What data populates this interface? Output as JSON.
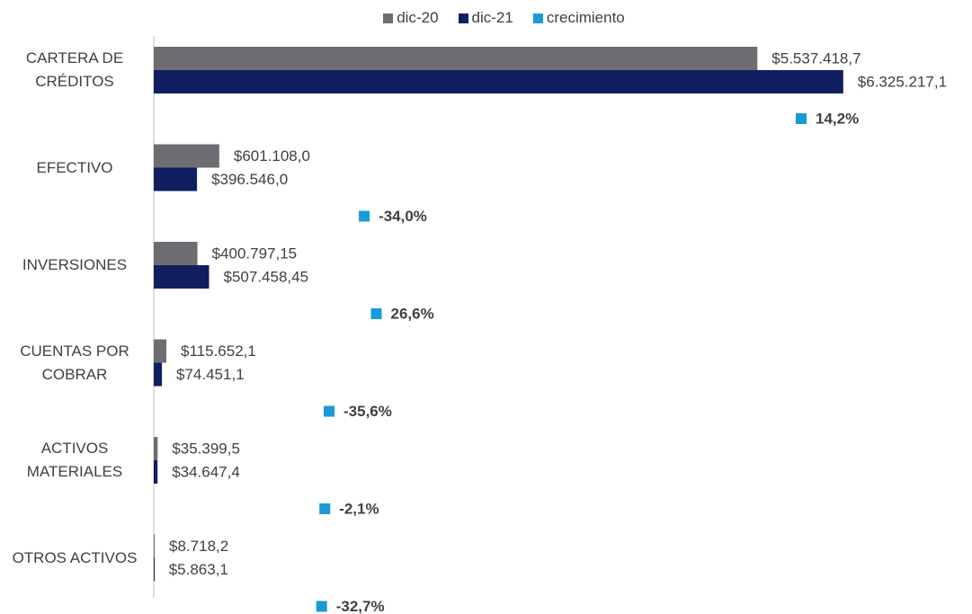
{
  "chart_data": {
    "type": "bar",
    "orientation": "horizontal",
    "categories": [
      "CARTERA DE CRÉDITOS",
      "EFECTIVO",
      "INVERSIONES",
      "CUENTAS POR COBRAR",
      "ACTIVOS MATERIALES",
      "OTROS ACTIVOS"
    ],
    "series": [
      {
        "name": "dic-20",
        "color": "#6d6e71",
        "values": [
          5537418.7,
          601108.0,
          400797.15,
          115652.1,
          35399.5,
          8718.2
        ],
        "value_labels": [
          "$5.537.418,7",
          "$601.108,0",
          "$400.797,15",
          "$115.652,1",
          "$35.399,5",
          "$8.718,2"
        ]
      },
      {
        "name": "dic-21",
        "color": "#0f1f5f",
        "values": [
          6325217.1,
          396546.0,
          507458.45,
          74451.1,
          34647.4,
          5863.1
        ],
        "value_labels": [
          "$6.325.217,1",
          "$396.546,0",
          "$507.458,45",
          "$74.451,1",
          "$34.647,4",
          "$5.863,1"
        ]
      },
      {
        "name": "crecimiento",
        "color": "#1a9ad6",
        "type": "marker",
        "values": [
          14.2,
          -34.0,
          26.6,
          -35.6,
          -2.1,
          -32.7
        ],
        "value_labels": [
          "14,2%",
          "-34,0%",
          "26,6%",
          "-35,6%",
          "-2,1%",
          "-32,7%"
        ]
      }
    ],
    "xlim": [
      0,
      6500000
    ],
    "legend": "top"
  }
}
